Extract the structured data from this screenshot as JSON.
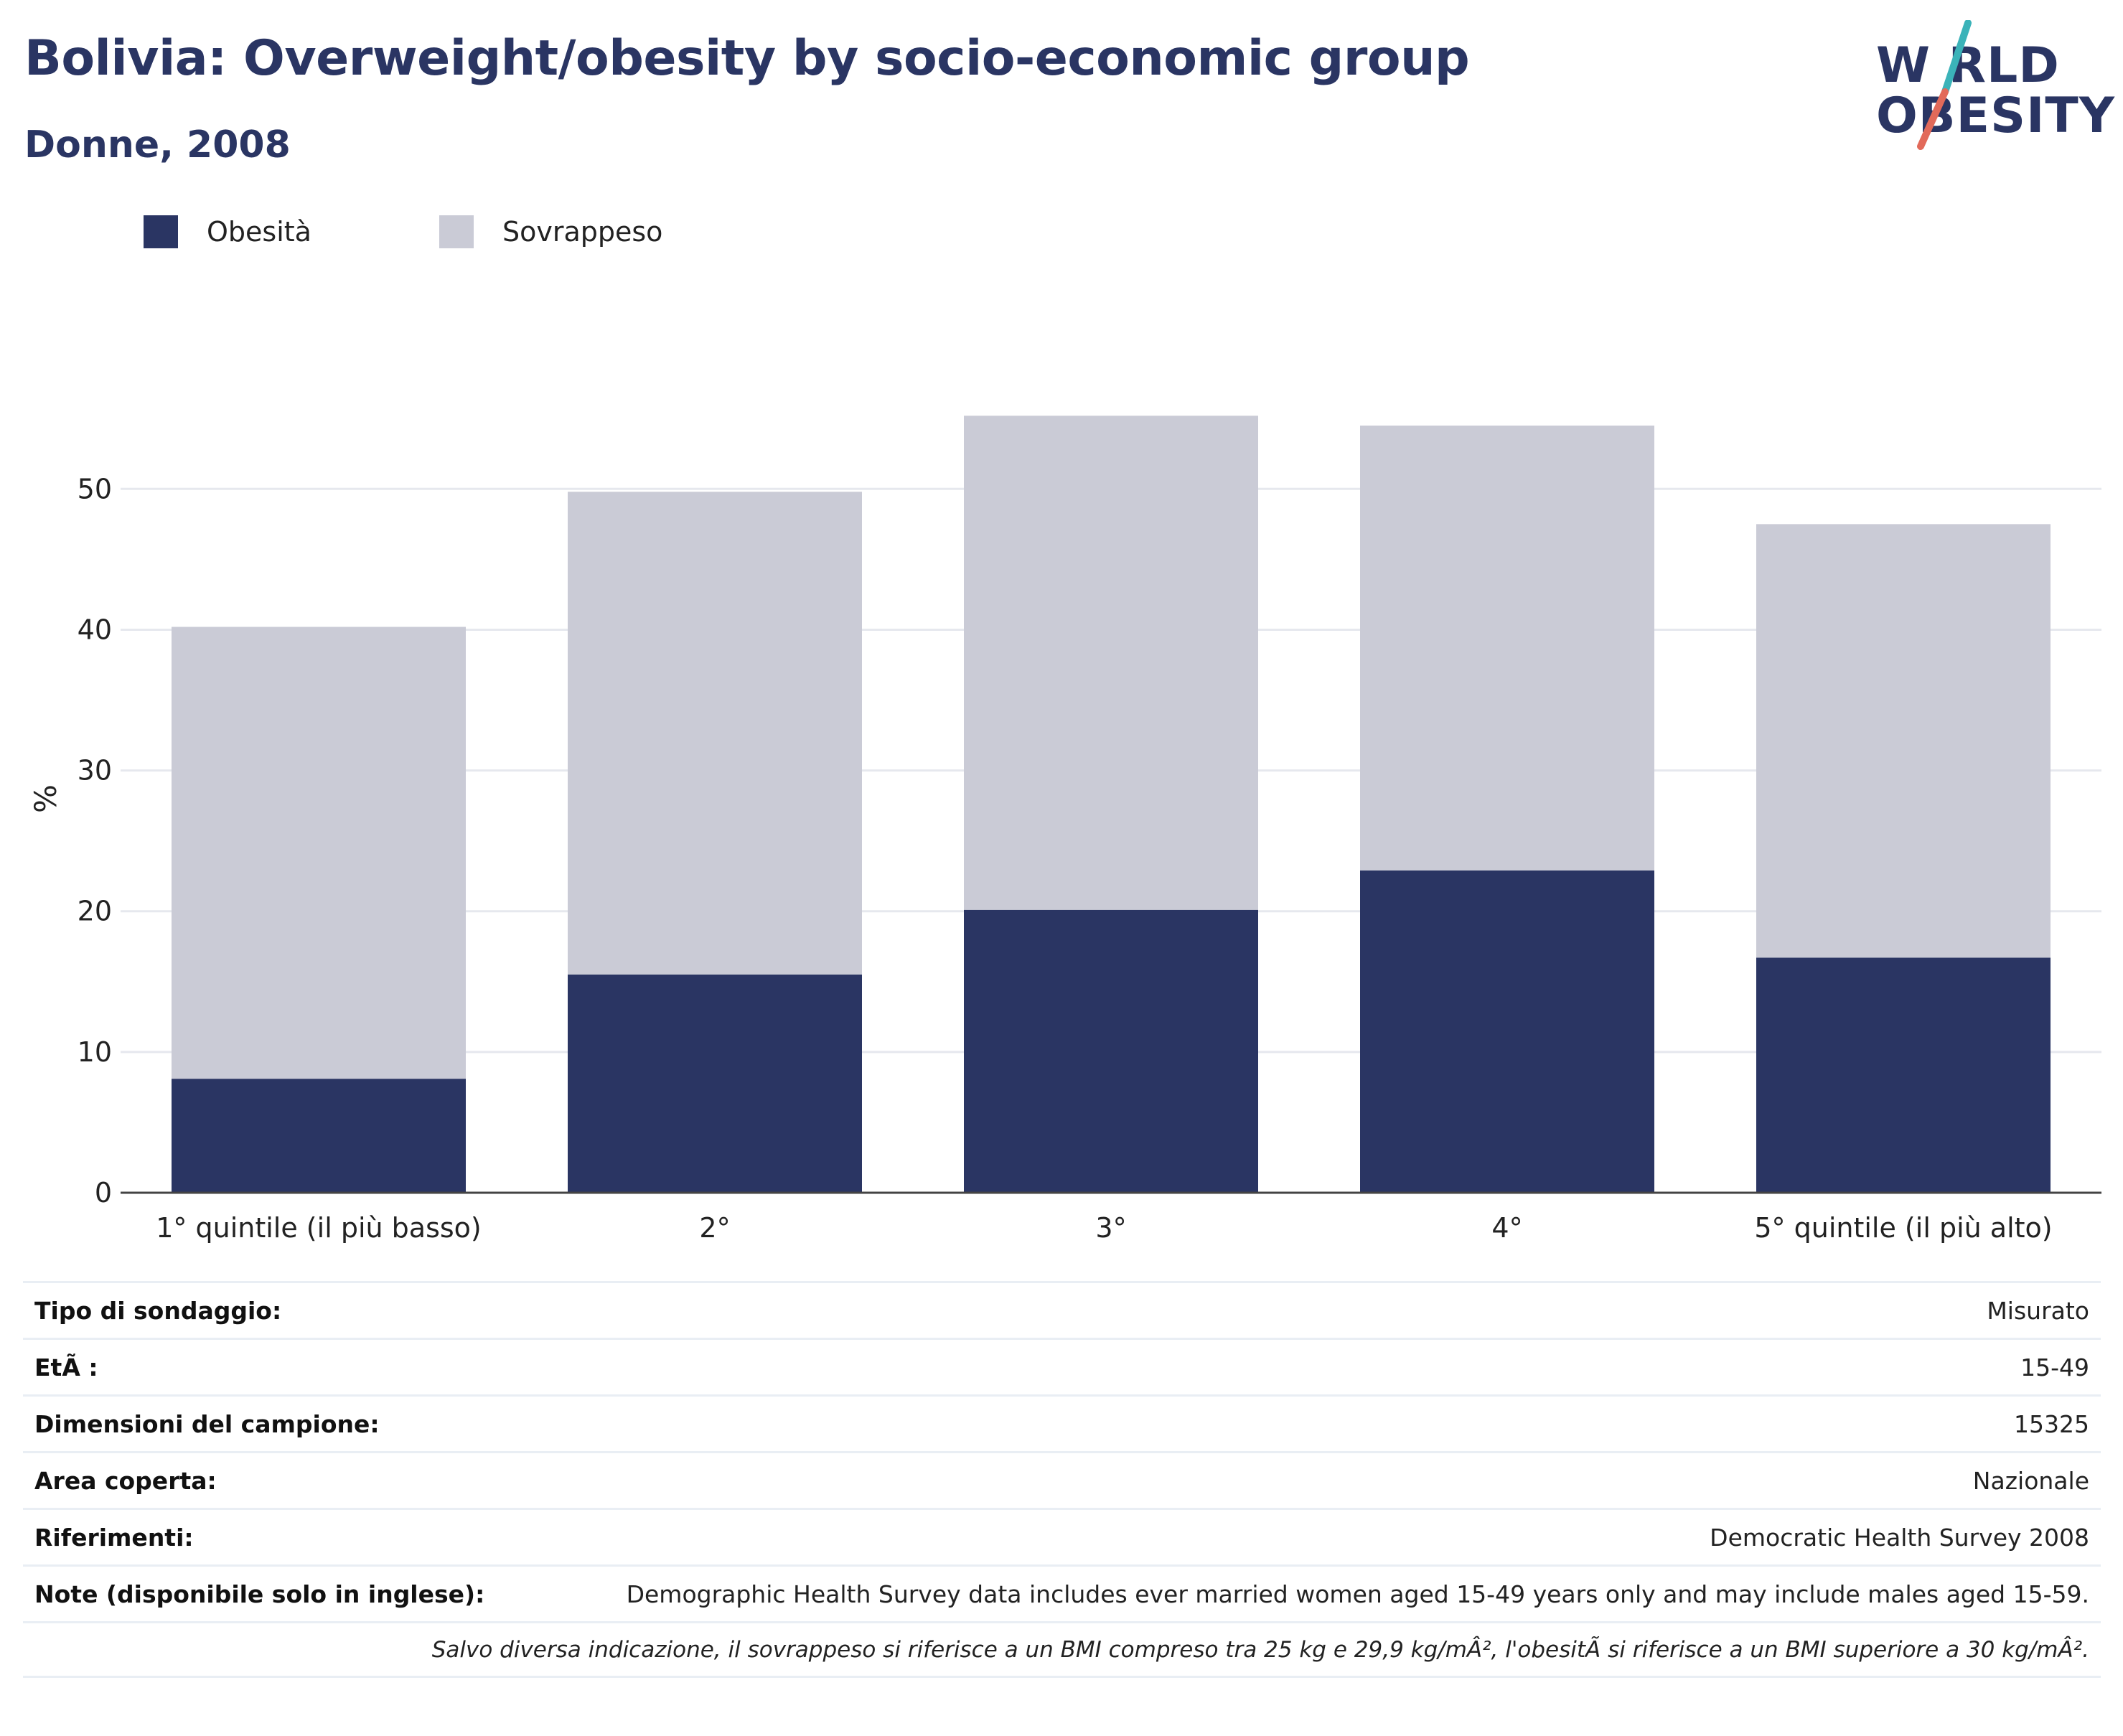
{
  "header": {
    "title": "Bolivia: Overweight/obesity by socio-economic group",
    "subtitle": "Donne, 2008"
  },
  "logo": {
    "line1": "W RLD",
    "line2": "OBESITY",
    "colors": {
      "text": "#2a3563",
      "slash_top": "#3bb3b9",
      "slash_bottom": "#e26a5a"
    }
  },
  "legend": [
    {
      "label": "Obesità",
      "color": "#2a3563"
    },
    {
      "label": "Sovrappeso",
      "color": "#cacbd6"
    }
  ],
  "chart_data": {
    "type": "bar",
    "stacked": true,
    "categories": [
      "1° quintile (il più basso)",
      "2°",
      "3°",
      "4°",
      "5° quintile (il più alto)"
    ],
    "series": [
      {
        "name": "Obesità",
        "values": [
          8.1,
          15.5,
          20.1,
          22.9,
          16.7
        ],
        "color": "#2a3563"
      },
      {
        "name": "Sovrappeso",
        "values": [
          32.1,
          34.3,
          35.1,
          31.6,
          30.8
        ],
        "color": "#cacbd6"
      }
    ],
    "ylabel": "%",
    "xlabel": "",
    "ylim": [
      0,
      57
    ],
    "yticks": [
      0,
      10,
      20,
      30,
      40,
      50
    ],
    "grid": true,
    "legend_position": "top-left"
  },
  "info": {
    "rows": [
      {
        "key": "Tipo di sondaggio:",
        "value": "Misurato"
      },
      {
        "key": "EtÃ :",
        "value": "15-49"
      },
      {
        "key": "Dimensioni del campione:",
        "value": "15325"
      },
      {
        "key": "Area coperta:",
        "value": "Nazionale"
      },
      {
        "key": "Riferimenti:",
        "value": "Democratic Health Survey 2008"
      },
      {
        "key": "Note (disponibile solo in inglese):",
        "value": "Demographic Health Survey data includes ever married women aged 15-49 years only and may include males aged 15-59."
      }
    ],
    "footnote": "Salvo diversa indicazione, il sovrappeso si riferisce a un BMI compreso tra 25 kg e 29,9 kg/mÂ², l'obesitÃ  si riferisce a un BMI superiore a 30 kg/mÂ²."
  }
}
